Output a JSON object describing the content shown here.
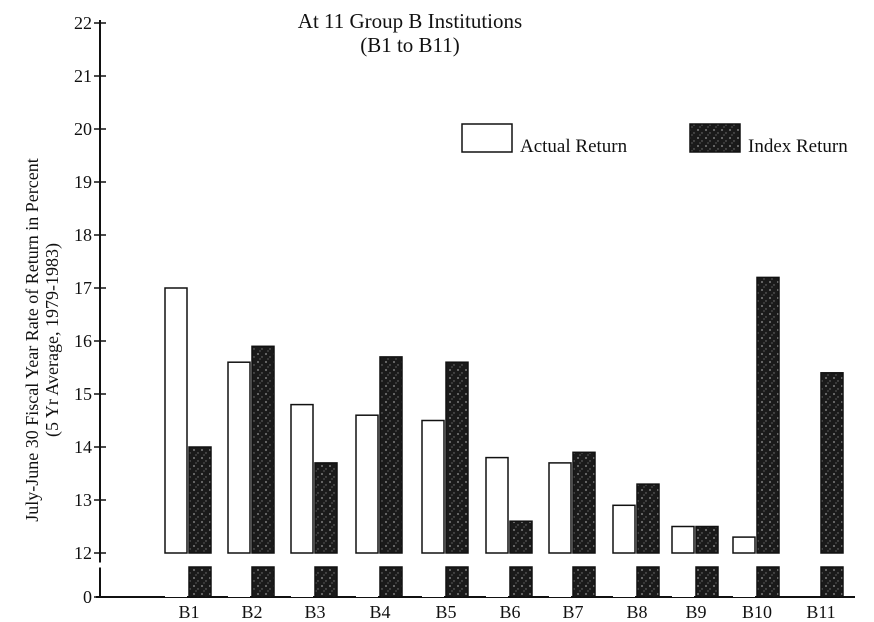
{
  "chart_data": {
    "type": "bar",
    "title": "At 11 Group B Institutions",
    "subtitle": "(B1 to B11)",
    "ylabel_line1": "July-June 30 Fiscal Year Rate of Return in Percent",
    "ylabel_line2": "(5 Yr Average, 1979-1983)",
    "xlabel": "",
    "categories": [
      "B1",
      "B2",
      "B3",
      "B4",
      "B5",
      "B6",
      "B7",
      "B8",
      "B9",
      "B10",
      "B11"
    ],
    "series": [
      {
        "name": "Actual Return",
        "color": "#ffffff",
        "values": [
          17.0,
          15.6,
          14.8,
          14.6,
          14.5,
          13.8,
          13.7,
          12.9,
          12.5,
          12.3,
          null
        ]
      },
      {
        "name": "Index Return",
        "color": "#1a1a1a",
        "values": [
          14.0,
          15.9,
          13.7,
          15.7,
          15.6,
          12.6,
          13.9,
          13.3,
          12.5,
          17.2,
          15.4
        ]
      }
    ],
    "yticks": [
      "0",
      "12",
      "13",
      "14",
      "15",
      "16",
      "17",
      "18",
      "19",
      "20",
      "21",
      "22"
    ],
    "ylim": [
      12,
      22
    ],
    "axis_break": "between 0 and 12",
    "legend_position": "top-right",
    "grid": false
  }
}
